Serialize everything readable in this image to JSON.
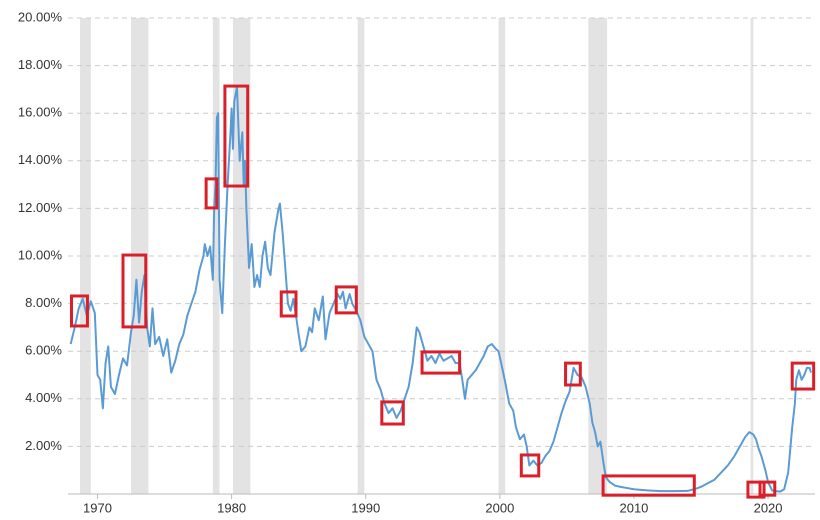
{
  "chart_data": {
    "type": "line",
    "x": [
      1968.0,
      1968.3,
      1968.6,
      1968.9,
      1969.2,
      1969.5,
      1969.8,
      1970.0,
      1970.2,
      1970.4,
      1970.6,
      1970.8,
      1971.0,
      1971.3,
      1971.6,
      1971.9,
      1972.2,
      1972.5,
      1972.7,
      1972.9,
      1973.1,
      1973.3,
      1973.5,
      1973.7,
      1973.9,
      1974.1,
      1974.3,
      1974.6,
      1974.9,
      1975.2,
      1975.5,
      1975.8,
      1976.1,
      1976.4,
      1976.7,
      1977.0,
      1977.3,
      1977.6,
      1977.9,
      1978.0,
      1978.2,
      1978.4,
      1978.6,
      1978.7,
      1978.8,
      1978.9,
      1979.0,
      1979.1,
      1979.3,
      1979.5,
      1979.7,
      1979.9,
      1980.0,
      1980.1,
      1980.2,
      1980.4,
      1980.6,
      1980.8,
      1980.9,
      1981.0,
      1981.1,
      1981.3,
      1981.5,
      1981.7,
      1981.9,
      1982.1,
      1982.3,
      1982.5,
      1982.7,
      1982.9,
      1983.2,
      1983.5,
      1983.6,
      1983.8,
      1984.0,
      1984.2,
      1984.4,
      1984.6,
      1984.8,
      1985.0,
      1985.2,
      1985.5,
      1985.8,
      1986.0,
      1986.2,
      1986.5,
      1986.8,
      1987.0,
      1987.3,
      1987.6,
      1987.9,
      1988.1,
      1988.3,
      1988.5,
      1988.8,
      1989.0,
      1989.3,
      1989.6,
      1989.9,
      1990.2,
      1990.5,
      1990.8,
      1991.1,
      1991.4,
      1991.7,
      1992.0,
      1992.3,
      1992.6,
      1992.9,
      1993.2,
      1993.5,
      1993.8,
      1994.0,
      1994.3,
      1994.6,
      1994.9,
      1995.2,
      1995.5,
      1995.8,
      1996.1,
      1996.4,
      1996.7,
      1997.0,
      1997.2,
      1997.4,
      1997.6,
      1997.9,
      1998.2,
      1998.5,
      1998.8,
      1999.1,
      1999.4,
      1999.7,
      1999.9,
      2000.1,
      2000.4,
      2000.7,
      2001.0,
      2001.2,
      2001.5,
      2001.8,
      2002.0,
      2002.2,
      2002.5,
      2002.8,
      2003.1,
      2003.4,
      2003.7,
      2004.0,
      2004.3,
      2004.6,
      2004.9,
      2005.2,
      2005.5,
      2005.8,
      2006.1,
      2006.4,
      2006.7,
      2006.9,
      2007.1,
      2007.3,
      2007.5,
      2007.7,
      2007.9,
      2008.2,
      2008.6,
      2009.0,
      2009.5,
      2010,
      2011,
      2012,
      2013,
      2014,
      2014.6,
      2015.0,
      2015.5,
      2016,
      2016.5,
      2017,
      2017.5,
      2018,
      2018.3,
      2018.6,
      2018.9,
      2019.1,
      2019.3,
      2019.5,
      2019.8,
      2020.0,
      2020.3,
      2020.6,
      2020.9,
      2021.2,
      2021.5,
      2021.8,
      2022.0,
      2022.1,
      2022.3,
      2022.5,
      2022.7,
      2022.9,
      2023.1,
      2023.2
    ],
    "series": [
      {
        "color": "#5b9bd5",
        "values": [
          6.3,
          7.0,
          7.8,
          8.2,
          7.5,
          8.1,
          7.6,
          5.0,
          4.8,
          3.6,
          5.5,
          6.2,
          4.5,
          4.2,
          5.0,
          5.7,
          5.4,
          6.8,
          7.5,
          9.0,
          7.2,
          8.5,
          9.2,
          7.0,
          6.2,
          7.8,
          6.3,
          6.6,
          5.8,
          6.5,
          5.1,
          5.6,
          6.3,
          6.7,
          7.5,
          8.0,
          8.5,
          9.4,
          10.0,
          10.5,
          10.0,
          10.4,
          9.0,
          12.0,
          13.0,
          15.8,
          16.0,
          9.0,
          7.6,
          10.5,
          13.0,
          15.0,
          16.2,
          14.5,
          16.5,
          17.1,
          14.0,
          15.2,
          13.0,
          14.0,
          12.0,
          9.5,
          10.5,
          8.7,
          9.2,
          8.7,
          10.0,
          10.6,
          9.5,
          9.2,
          11.0,
          12.0,
          12.2,
          11.0,
          9.5,
          8.0,
          7.7,
          8.2,
          7.5,
          6.7,
          6.0,
          6.2,
          7.0,
          6.8,
          7.8,
          7.3,
          8.3,
          6.5,
          7.6,
          8.0,
          8.4,
          8.2,
          8.5,
          7.8,
          8.4,
          8.0,
          7.7,
          7.3,
          6.6,
          6.3,
          6.0,
          4.8,
          4.4,
          3.8,
          3.4,
          3.6,
          3.2,
          3.5,
          4.0,
          4.5,
          5.5,
          7.0,
          6.8,
          6.2,
          5.6,
          5.8,
          5.5,
          5.9,
          5.6,
          5.7,
          5.8,
          5.5,
          5.5,
          4.8,
          4.0,
          4.8,
          5.0,
          5.2,
          5.5,
          5.8,
          6.2,
          6.3,
          6.1,
          6.0,
          5.5,
          4.7,
          3.8,
          3.5,
          2.8,
          2.3,
          2.5,
          2.0,
          1.2,
          1.4,
          1.2,
          1.3,
          1.6,
          1.8,
          2.2,
          2.8,
          3.4,
          3.9,
          4.3,
          5.3,
          5.0,
          4.9,
          4.5,
          3.8,
          3.0,
          2.6,
          2.0,
          2.2,
          1.4,
          0.7,
          0.5,
          0.35,
          0.3,
          0.25,
          0.2,
          0.15,
          0.12,
          0.12,
          0.13,
          0.22,
          0.3,
          0.45,
          0.6,
          0.9,
          1.2,
          1.6,
          2.1,
          2.4,
          2.6,
          2.5,
          2.3,
          1.9,
          1.6,
          1.0,
          0.5,
          0.15,
          0.12,
          0.1,
          0.2,
          0.9,
          2.8,
          3.8,
          4.8,
          5.2,
          4.8,
          5.0,
          5.3,
          5.3,
          5.1
        ]
      }
    ],
    "xlim": [
      1967.8,
      2023.5
    ],
    "ylim": [
      0,
      20
    ],
    "xticks": [
      1970,
      1980,
      1990,
      2000,
      2010,
      2020
    ],
    "yticks": [
      {
        "value": 2,
        "label": "2.00%"
      },
      {
        "value": 4,
        "label": "4.00%"
      },
      {
        "value": 6,
        "label": "6.00%"
      },
      {
        "value": 8,
        "label": "8.00%"
      },
      {
        "value": 10,
        "label": "10.00%"
      },
      {
        "value": 12,
        "label": "12.00%"
      },
      {
        "value": 14,
        "label": "14.00%"
      },
      {
        "value": 16,
        "label": "16.00%"
      },
      {
        "value": 18,
        "label": "18.00%"
      },
      {
        "value": 20,
        "label": "20.00%"
      }
    ],
    "grid": true,
    "recession_color": "#e3e3e3",
    "recessions": [
      [
        1968.7,
        1969.5
      ],
      [
        1972.5,
        1973.8
      ],
      [
        1978.6,
        1979.1
      ],
      [
        1980.1,
        1981.4
      ],
      [
        1989.4,
        1989.9
      ],
      [
        1999.9,
        2000.4
      ],
      [
        2006.6,
        2008.0
      ],
      [
        2018.7,
        2018.9
      ]
    ],
    "highlight_color": "#d9202a",
    "highlights": [
      [
        1968.06,
        1969.25,
        7.06,
        8.32
      ],
      [
        1971.9,
        1973.6,
        7.02,
        10.04
      ],
      [
        1978.1,
        1978.9,
        12.02,
        13.24
      ],
      [
        1979.5,
        1981.2,
        12.94,
        17.14
      ],
      [
        1983.7,
        1984.8,
        7.48,
        8.49
      ],
      [
        1987.8,
        1989.3,
        7.61,
        8.7
      ],
      [
        1991.2,
        1992.8,
        2.94,
        3.87
      ],
      [
        1994.2,
        1997.0,
        5.08,
        5.97
      ],
      [
        2001.6,
        2002.9,
        0.76,
        1.64
      ],
      [
        2004.9,
        2006.0,
        4.58,
        5.5
      ],
      [
        2007.7,
        2014.5,
        -0.05,
        0.76
      ],
      [
        2018.5,
        2019.7,
        -0.13,
        0.5
      ],
      [
        2019.4,
        2020.5,
        -0.05,
        0.5
      ],
      [
        2021.8,
        2023.4,
        4.41,
        5.5
      ]
    ]
  }
}
